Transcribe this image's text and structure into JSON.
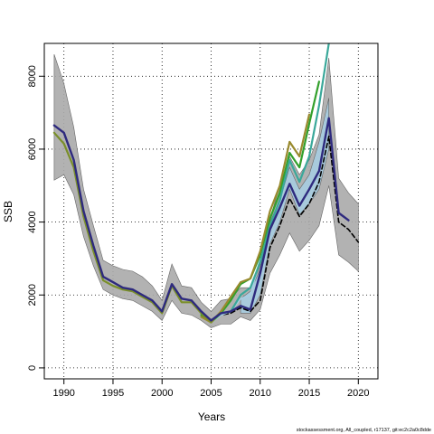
{
  "chart_data": {
    "type": "line",
    "title": "",
    "xlabel": "Years",
    "ylabel": "SSB",
    "xlim": [
      1988,
      2022
    ],
    "ylim": [
      -300,
      8900
    ],
    "x_ticks": [
      1990,
      1995,
      2000,
      2005,
      2010,
      2015,
      2020
    ],
    "y_ticks": [
      0,
      2000,
      4000,
      6000,
      8000
    ],
    "grid": true,
    "legend": "none",
    "bands": [
      {
        "color": "#aaaaaa",
        "x": [
          1989,
          1990,
          1991,
          1992,
          1993,
          1994,
          1995,
          1996,
          1997,
          1998,
          1999,
          2000,
          2001,
          2002,
          2003,
          2004,
          2005,
          2006,
          2007,
          2008,
          2009,
          2010,
          2011,
          2012,
          2013,
          2014,
          2015,
          2016,
          2017,
          2018,
          2019,
          2020
        ],
        "lower": [
          5150,
          5300,
          4750,
          3600,
          2800,
          2150,
          2000,
          1900,
          1850,
          1700,
          1550,
          1300,
          1850,
          1500,
          1450,
          1300,
          1100,
          1200,
          1200,
          1400,
          1300,
          1600,
          2600,
          3100,
          3700,
          3200,
          3500,
          3900,
          5000,
          3100,
          2900,
          2650
        ],
        "upper": [
          8600,
          7800,
          6600,
          4900,
          3900,
          2950,
          2800,
          2700,
          2650,
          2500,
          2250,
          1850,
          2850,
          2250,
          2200,
          1800,
          1550,
          1850,
          1900,
          2200,
          2200,
          2800,
          4100,
          5000,
          5800,
          5300,
          5700,
          6400,
          8500,
          5200,
          4800,
          4500
        ]
      },
      {
        "color": "#a6cee3",
        "x": [
          2008,
          2009,
          2010,
          2011,
          2012,
          2013,
          2014,
          2015,
          2016,
          2017
        ],
        "lower": [
          1500,
          1500,
          2000,
          3400,
          4000,
          4900,
          4200,
          4500,
          4900,
          6000
        ],
        "upper": [
          1900,
          2100,
          2700,
          4000,
          4600,
          5500,
          4900,
          5300,
          6200,
          7400
        ]
      }
    ],
    "series": [
      {
        "color": "#000000",
        "dashed": true,
        "width": 1.6,
        "x": [
          2005,
          2006,
          2007,
          2008,
          2009,
          2010,
          2011,
          2012,
          2013,
          2014,
          2015,
          2016,
          2017,
          2018,
          2019,
          2020
        ],
        "y": [
          1280,
          1450,
          1500,
          1650,
          1550,
          1850,
          3300,
          3900,
          4650,
          4150,
          4500,
          5100,
          6350,
          4000,
          3800,
          3450
        ]
      },
      {
        "color": "#a6cee3",
        "width": 1.8,
        "x": [
          2004,
          2005,
          2006,
          2007,
          2008,
          2009,
          2010
        ],
        "y": [
          1400,
          1250,
          1450,
          1550,
          1900,
          2000,
          3000
        ]
      },
      {
        "color": "#33a02c",
        "width": 2.2,
        "x": [
          2004,
          2005,
          2006,
          2007,
          2008,
          2009,
          2010,
          2011,
          2012,
          2013,
          2014,
          2015,
          2016
        ],
        "y": [
          1450,
          1250,
          1500,
          1850,
          2300,
          2450,
          3100,
          4100,
          4800,
          5900,
          5500,
          6700,
          7850
        ]
      },
      {
        "color": "#998a2e",
        "width": 2.2,
        "x": [
          2004,
          2005,
          2006,
          2007,
          2008,
          2009,
          2010,
          2011,
          2012,
          2013,
          2014,
          2015
        ],
        "y": [
          1400,
          1250,
          1550,
          1950,
          2350,
          2450,
          3200,
          4300,
          5000,
          6200,
          5800,
          6950
        ]
      },
      {
        "color": "#3aa89a",
        "width": 2.2,
        "x": [
          2005,
          2006,
          2007,
          2008,
          2009,
          2010,
          2011,
          2012,
          2013,
          2014,
          2015,
          2016,
          2017,
          2018
        ],
        "y": [
          1300,
          1500,
          1550,
          2000,
          2200,
          2900,
          3900,
          4600,
          5700,
          5100,
          5800,
          7200,
          8900,
          9100
        ]
      },
      {
        "color": "#7a8f2a",
        "width": 2.2,
        "x": [
          1989,
          1990,
          1991,
          1992,
          1993,
          1994,
          1995,
          1996,
          1997,
          1998,
          1999,
          2000,
          2001,
          2002,
          2003,
          2004,
          2005
        ],
        "y": [
          6450,
          6150,
          5500,
          4150,
          3200,
          2400,
          2250,
          2150,
          2100,
          1950,
          1800,
          1500,
          2250,
          1800,
          1800,
          1500,
          1250
        ]
      },
      {
        "color": "#2e2a7e",
        "width": 2.4,
        "x": [
          1989,
          1990,
          1991,
          1992,
          1993,
          1994,
          1995,
          1996,
          1997,
          1998,
          1999,
          2000,
          2001,
          2002,
          2003,
          2004,
          2005,
          2006,
          2007,
          2008,
          2009,
          2010,
          2011,
          2012,
          2013,
          2014,
          2015,
          2016,
          2017,
          2018,
          2019
        ],
        "y": [
          6650,
          6450,
          5700,
          4300,
          3350,
          2500,
          2350,
          2200,
          2150,
          2000,
          1850,
          1550,
          2300,
          1900,
          1850,
          1550,
          1300,
          1500,
          1550,
          1700,
          1600,
          2600,
          3800,
          4400,
          5050,
          4450,
          4900,
          5400,
          6850,
          4250,
          4050
        ]
      }
    ]
  },
  "footer": {
    "credit": "stockassessment.org, All_coupled, r17137, git:ec2c2a0c8dde"
  }
}
